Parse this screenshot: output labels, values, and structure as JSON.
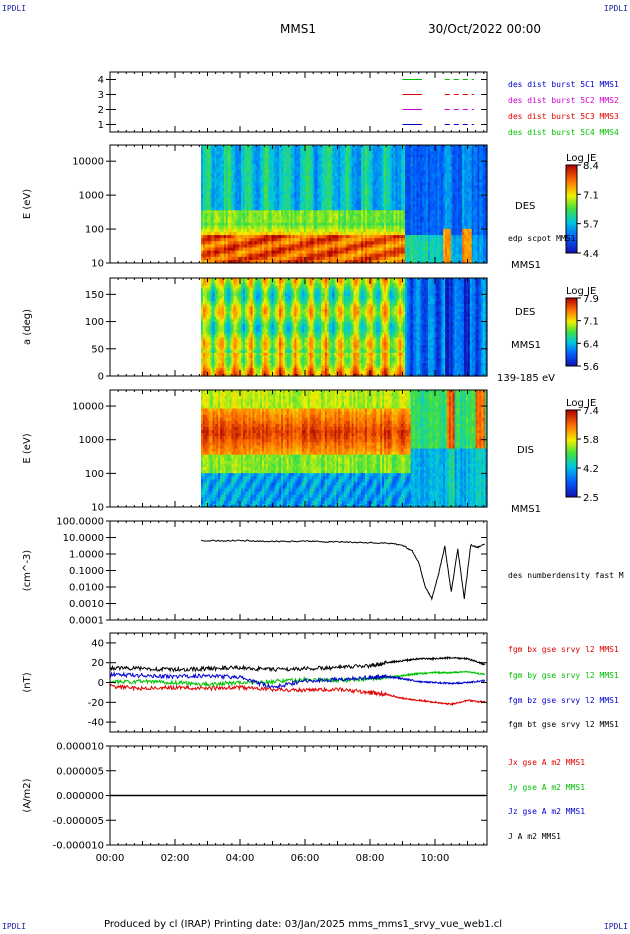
{
  "corner_labels": {
    "top_left": "IPDLI",
    "top_right": "IPDLI",
    "bottom_left": "IPDLI",
    "bottom_right": "IPDLI"
  },
  "header": {
    "spacecraft": "MMS1",
    "datetime": "30/Oct/2022 00:00"
  },
  "footer": {
    "text": "Produced by cl (IRAP)   Printing date: 03/Jan/2025   mms_mms1_srvy_vue_web1.cl"
  },
  "colors": {
    "blue": "#0000d0",
    "magenta": "#d000d0",
    "red": "#e00000",
    "green": "#00c000",
    "black": "#000000"
  },
  "chart_data": [
    {
      "type": "line",
      "panel": "burst-availability",
      "ytick_labels": [
        "4",
        "3",
        "2",
        "1"
      ],
      "ylim": [
        0.5,
        4.5
      ],
      "legend": [
        {
          "name": "des dist burst 5C1 MMS1",
          "color": "#0000d0"
        },
        {
          "name": "des dist burst 5C2 MMS2",
          "color": "#d000d0"
        },
        {
          "name": "des dist burst 5C3 MMS3",
          "color": "#e00000"
        },
        {
          "name": "des dist burst 5C4 MMS4",
          "color": "#00c000"
        }
      ],
      "series": [
        {
          "level": 4,
          "color": "#00c000",
          "segments": [
            [
              9.0,
              9.6
            ],
            [
              10.3,
              11.2
            ]
          ],
          "dashed_after": 10.3
        },
        {
          "level": 3,
          "color": "#e00000",
          "segments": [
            [
              9.0,
              9.6
            ],
            [
              10.3,
              11.2
            ]
          ],
          "dashed_after": 10.3
        },
        {
          "level": 2,
          "color": "#d000d0",
          "segments": [
            [
              9.0,
              9.6
            ],
            [
              10.3,
              11.2
            ]
          ],
          "dashed_after": 10.3
        },
        {
          "level": 1,
          "color": "#0000d0",
          "segments": [
            [
              9.0,
              9.6
            ],
            [
              10.3,
              11.2
            ]
          ],
          "dashed_after": 10.3
        }
      ]
    },
    {
      "type": "heatmap",
      "panel": "des-energy",
      "ylabel": "E (eV)",
      "yscale": "log",
      "ylim": [
        10,
        30000
      ],
      "ytick_labels": [
        "10000",
        "1000",
        "100",
        "10"
      ],
      "ytick_values": [
        10000,
        1000,
        100,
        10
      ],
      "data_start_hour": 2.8,
      "instrument": "DES",
      "right_labels": [
        "DES",
        "edp scpot MMS1",
        "MMS1"
      ],
      "colorbar": {
        "title": "Log JE",
        "ticks": [
          "8.4",
          "7.1",
          "5.7",
          "4.4"
        ],
        "range": [
          4.4,
          8.4
        ]
      }
    },
    {
      "type": "heatmap",
      "panel": "des-pitch",
      "ylabel": "a (deg)",
      "ylim": [
        0,
        180
      ],
      "ytick_labels": [
        "150",
        "100",
        "50",
        "0"
      ],
      "ytick_values": [
        150,
        100,
        50,
        0
      ],
      "data_start_hour": 2.8,
      "right_labels": [
        "DES",
        "MMS1",
        "139-185 eV"
      ],
      "colorbar": {
        "title": "Log JE",
        "ticks": [
          "7.9",
          "7.1",
          "6.4",
          "5.6"
        ],
        "range": [
          5.6,
          7.9
        ]
      }
    },
    {
      "type": "heatmap",
      "panel": "dis-energy",
      "ylabel": "E (eV)",
      "yscale": "log",
      "ylim": [
        10,
        30000
      ],
      "ytick_labels": [
        "10000",
        "1000",
        "100",
        "10"
      ],
      "ytick_values": [
        10000,
        1000,
        100,
        10
      ],
      "data_start_hour": 2.8,
      "right_labels": [
        "DIS",
        "MMS1"
      ],
      "colorbar": {
        "title": "Log JE",
        "ticks": [
          "7.4",
          "5.8",
          "4.2",
          "2.5"
        ],
        "range": [
          2.5,
          7.4
        ]
      }
    },
    {
      "type": "line",
      "panel": "density",
      "ylabel": "(cm^-3)",
      "yscale": "log",
      "ylim": [
        0.0001,
        100
      ],
      "ytick_labels": [
        "100.0000",
        "10.0000",
        "1.0000",
        "0.1000",
        "0.0100",
        "0.0010",
        "0.0001"
      ],
      "series": [
        {
          "name": "des numberdensity fast M",
          "color": "#000000",
          "x": [
            2.8,
            3.5,
            4.0,
            4.5,
            5.0,
            5.5,
            6.0,
            6.5,
            7.0,
            7.5,
            8.0,
            8.5,
            9.0,
            9.3,
            9.5,
            9.7,
            9.9,
            10.1,
            10.3,
            10.5,
            10.7,
            10.9,
            11.1,
            11.3,
            11.55
          ],
          "y": [
            6.5,
            6.2,
            6.8,
            6.0,
            5.9,
            5.8,
            6.2,
            5.5,
            5.4,
            5.2,
            4.8,
            4.5,
            3.5,
            1.5,
            0.3,
            0.01,
            0.002,
            0.05,
            3.0,
            0.005,
            2.0,
            0.002,
            3.5,
            2.5,
            4.0
          ]
        }
      ]
    },
    {
      "type": "line",
      "panel": "magnetic-field",
      "ylabel": "(nT)",
      "ylim": [
        -50,
        50
      ],
      "ytick_labels": [
        "40",
        "20",
        "0",
        "-20",
        "-40"
      ],
      "series": [
        {
          "name": "fgm bx gse srvy l2 MMS1",
          "color": "#e00000",
          "x": [
            0,
            1,
            2,
            3,
            4,
            5,
            6,
            7,
            8,
            8.5,
            9,
            9.5,
            10,
            10.5,
            11,
            11.55
          ],
          "y": [
            -4,
            -6,
            -5,
            -6,
            -5,
            -7,
            -8,
            -7,
            -10,
            -12,
            -16,
            -18,
            -20,
            -22,
            -18,
            -20
          ]
        },
        {
          "name": "fgm by gse srvy l2 MMS1",
          "color": "#00c000",
          "x": [
            0,
            1,
            2,
            3,
            4,
            5,
            6,
            7,
            8,
            8.5,
            9,
            9.5,
            10,
            10.5,
            11,
            11.55
          ],
          "y": [
            0,
            1,
            0,
            -2,
            0,
            1,
            3,
            2,
            4,
            5,
            7,
            9,
            10,
            10,
            11,
            8
          ]
        },
        {
          "name": "fgm bz gse srvy l2 MMS1",
          "color": "#0000d0",
          "x": [
            0,
            1,
            2,
            3,
            4,
            5,
            6,
            7,
            8,
            8.5,
            9,
            9.5,
            10,
            10.5,
            11,
            11.55
          ],
          "y": [
            8,
            7,
            6,
            7,
            5,
            -5,
            2,
            3,
            5,
            6,
            4,
            1,
            0,
            -1,
            0,
            2
          ]
        },
        {
          "name": "fgm bt gse srvy l2 MMS1",
          "color": "#000000",
          "x": [
            0,
            1,
            2,
            3,
            4,
            5,
            6,
            7,
            8,
            8.5,
            9,
            9.5,
            10,
            10.5,
            11,
            11.55
          ],
          "y": [
            15,
            14,
            13,
            14,
            15,
            13,
            14,
            15,
            17,
            20,
            22,
            24,
            24,
            25,
            24,
            18
          ]
        }
      ]
    },
    {
      "type": "line",
      "panel": "current-density",
      "ylabel": "(A/m2)",
      "ylim": [
        -1e-05,
        1e-05
      ],
      "ytick_labels": [
        "0.000010",
        "0.000005",
        "0.000000",
        "-0.000005",
        "-0.000010"
      ],
      "series": [
        {
          "name": "Jx gse A m2 MMS1",
          "color": "#e00000"
        },
        {
          "name": "Jy gse A m2 MMS1",
          "color": "#00c000"
        },
        {
          "name": "Jz gse A m2 MMS1",
          "color": "#0000d0"
        },
        {
          "name": "J A m2 MMS1",
          "color": "#000000",
          "x": [
            0,
            2,
            4,
            6,
            8,
            9,
            10,
            11,
            11.55
          ],
          "y": [
            0,
            0,
            0,
            0,
            0,
            0,
            0,
            0,
            0
          ]
        }
      ]
    }
  ],
  "xaxis": {
    "tick_labels": [
      "00:00",
      "02:00",
      "04:00",
      "06:00",
      "08:00",
      "10:00"
    ],
    "tick_values": [
      0,
      2,
      4,
      6,
      8,
      10
    ],
    "range": [
      0,
      11.6
    ]
  }
}
